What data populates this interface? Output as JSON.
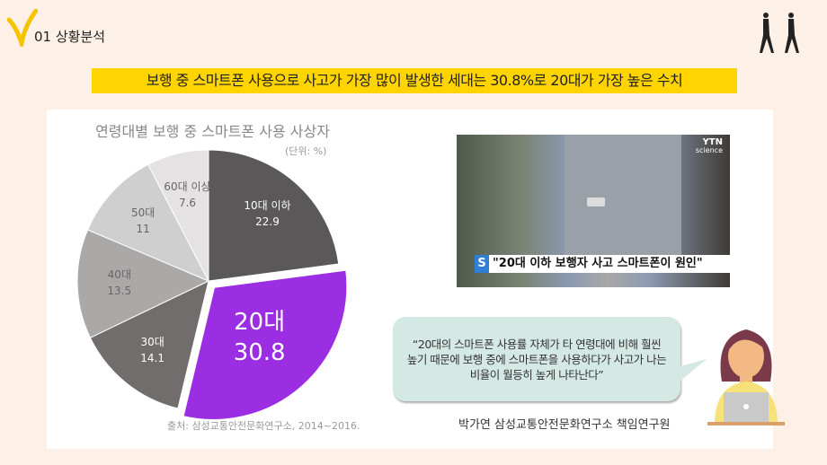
{
  "header": {
    "section_title": "01 상황분석",
    "headline": "보행 중 스마트폰 사용으로 사고가 가장 많이 발생한 세대는 30.8%로 20대가 가장 높은 수치"
  },
  "chart_data": {
    "type": "pie",
    "title": "연령대별 보행 중 스마트폰 사용 사상자",
    "unit": "(단위: %)",
    "source": "출처: 삼성교통안전문화연구소, 2014~2016.",
    "categories": [
      "10대 이하",
      "20대",
      "30대",
      "40대",
      "50대",
      "60대 이상"
    ],
    "values": [
      22.9,
      30.8,
      14.1,
      13.5,
      11,
      7.6
    ],
    "colors": [
      "#5a5858",
      "#9b2de3",
      "#726d6d",
      "#aba8a8",
      "#d0cfcf",
      "#e4e2e2"
    ],
    "highlighted": "20대",
    "value_labels": [
      "22.9",
      "30.8",
      "14.1",
      "13.5",
      "11",
      "7.6"
    ]
  },
  "news": {
    "caption": "\"20대 이하 보행자 사고 스마트폰이 원인\"",
    "caption_logo": "S",
    "channel": "YTN",
    "channel_sub": "science"
  },
  "quote": {
    "text": "“20대의 스마트폰 사용률 자체가 타 연령대에 비해 훨씬 높기 때문에 보행 중에 스마트폰을 사용하다가 사고가 나는 비율이 월등히 높게 나타난다”",
    "speaker": "박가연 삼성교통안전문화연구소 책임연구원"
  }
}
